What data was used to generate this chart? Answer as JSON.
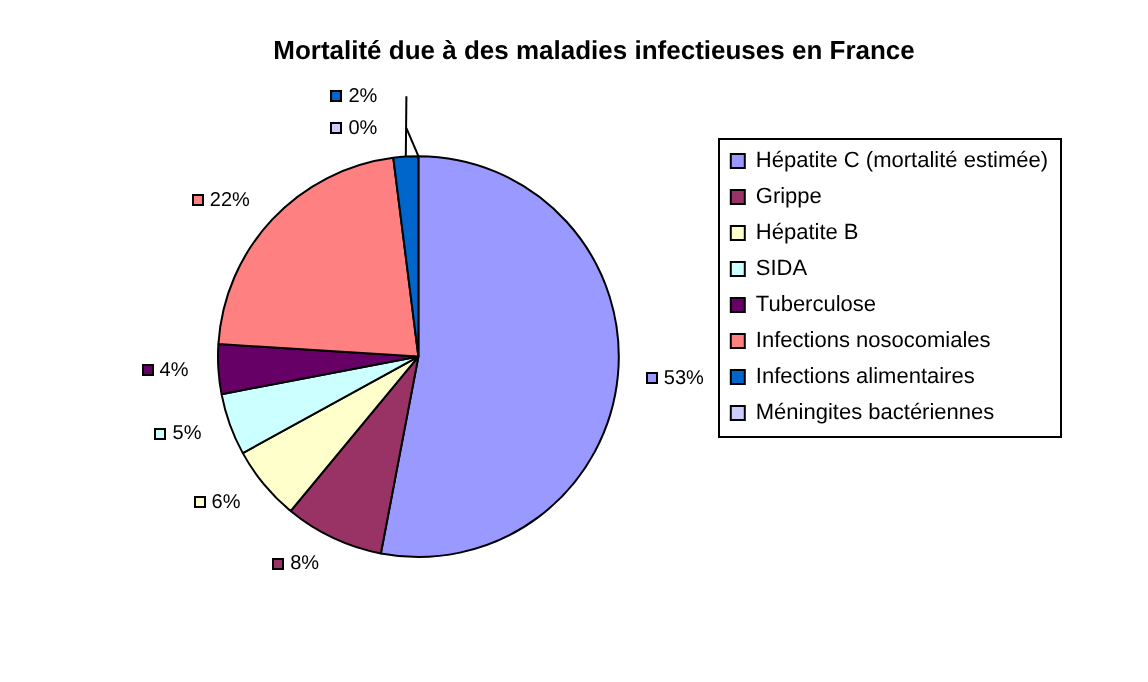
{
  "chart_data": {
    "type": "pie",
    "title": "Mortalité due à des maladies infectieuses en France",
    "categories": [
      "Hépatite C (mortalité estimée)",
      "Grippe",
      "Hépatite B",
      "SIDA",
      "Tuberculose",
      "Infections nosocomiales",
      "Infections alimentaires",
      "Méningites bactériennes"
    ],
    "values": [
      53,
      8,
      6,
      5,
      4,
      22,
      2,
      0
    ],
    "value_labels": [
      "53%",
      "8%",
      "6%",
      "5%",
      "4%",
      "22%",
      "2%",
      "0%"
    ],
    "colors": [
      "#9999ff",
      "#993366",
      "#ffffcc",
      "#ccffff",
      "#660066",
      "#ff8080",
      "#0066cc",
      "#ccccff"
    ],
    "legend": "right"
  }
}
